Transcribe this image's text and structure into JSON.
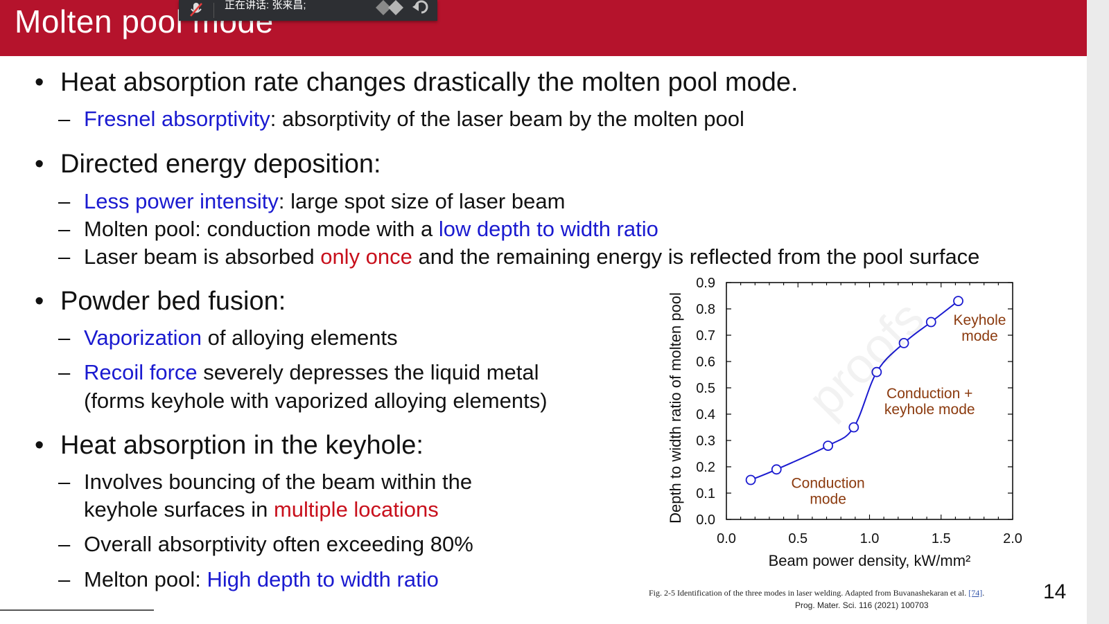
{
  "slide": {
    "title": "Molten pool mode",
    "page_number": "14",
    "watermark": "proofs"
  },
  "meeting_bar": {
    "speaking_label": "正在讲话: 张来昌;",
    "icons": [
      "mic-muted-icon",
      "grid-icon",
      "undo-icon"
    ]
  },
  "bullets": [
    {
      "text": "Heat absorption rate changes drastically the molten pool mode.",
      "subs": [
        {
          "parts": [
            {
              "t": "Fresnel absorptivity",
              "c": "blue"
            },
            {
              "t": ": absorptivity of the laser beam by the molten pool",
              "c": ""
            }
          ]
        }
      ]
    },
    {
      "text": "Directed energy deposition:",
      "subs": [
        {
          "parts": [
            {
              "t": "Less power intensity",
              "c": "blue"
            },
            {
              "t": ": large spot size of laser beam",
              "c": ""
            }
          ]
        },
        {
          "parts": [
            {
              "t": "Molten pool: conduction mode with a ",
              "c": ""
            },
            {
              "t": "low depth to width ratio",
              "c": "blue"
            }
          ]
        },
        {
          "parts": [
            {
              "t": "Laser beam is absorbed ",
              "c": ""
            },
            {
              "t": "only once",
              "c": "red"
            },
            {
              "t": " and the remaining energy is reflected from the pool surface",
              "c": ""
            }
          ]
        }
      ]
    },
    {
      "text": "Powder bed fusion:",
      "subs": [
        {
          "parts": [
            {
              "t": "Vaporization",
              "c": "blue"
            },
            {
              "t": " of alloying elements",
              "c": ""
            }
          ]
        },
        {
          "parts": [
            {
              "t": "Recoil force",
              "c": "blue"
            },
            {
              "t": " severely depresses the liquid metal",
              "c": ""
            }
          ],
          "cont": "(forms keyhole with vaporized alloying elements)"
        }
      ]
    },
    {
      "text": "Heat absorption in the keyhole:",
      "subs": [
        {
          "parts": [
            {
              "t": "Involves bouncing of the beam within the",
              "c": ""
            }
          ],
          "cont_parts": [
            {
              "t": "keyhole surfaces in ",
              "c": ""
            },
            {
              "t": "multiple locations",
              "c": "red"
            }
          ]
        },
        {
          "parts": [
            {
              "t": "Overall absorptivity often exceeding 80%",
              "c": ""
            }
          ]
        },
        {
          "parts": [
            {
              "t": "Melton pool: ",
              "c": ""
            },
            {
              "t": "High depth to width ratio",
              "c": "blue"
            }
          ]
        }
      ]
    }
  ],
  "chart_data": {
    "type": "line",
    "xlabel": "Beam power density, kW/mm²",
    "ylabel": "Depth to width ratio of molten pool",
    "xlim": [
      0.0,
      2.0
    ],
    "ylim": [
      0.0,
      0.9
    ],
    "x_ticks": [
      "0.0",
      "0.5",
      "1.0",
      "1.5",
      "2.0"
    ],
    "y_ticks": [
      "0.0",
      "0.1",
      "0.2",
      "0.3",
      "0.4",
      "0.5",
      "0.6",
      "0.7",
      "0.8",
      "0.9"
    ],
    "series": [
      {
        "x": [
          0.17,
          0.35,
          0.71,
          0.89,
          1.05,
          1.24,
          1.43,
          1.62
        ],
        "y": [
          0.15,
          0.19,
          0.28,
          0.35,
          0.56,
          0.67,
          0.75,
          0.83
        ]
      }
    ],
    "annotations": [
      {
        "text": [
          "Conduction",
          "mode"
        ],
        "x": 0.71,
        "y": 0.12
      },
      {
        "text": [
          "Conduction +",
          "keyhole mode"
        ],
        "x": 1.42,
        "y": 0.46
      },
      {
        "text": [
          "Keyhole",
          "mode"
        ],
        "x": 1.77,
        "y": 0.74
      }
    ],
    "line_color": "#1a1ad0",
    "annotation_color": "#8b3a0e"
  },
  "caption": {
    "text": "Fig. 2-5 Identification of the three modes in laser welding. Adapted from Buvanashekaran et al.",
    "ref": "[74]",
    "journal": "Prog. Mater. Sci. 116 (2021) 100703"
  }
}
